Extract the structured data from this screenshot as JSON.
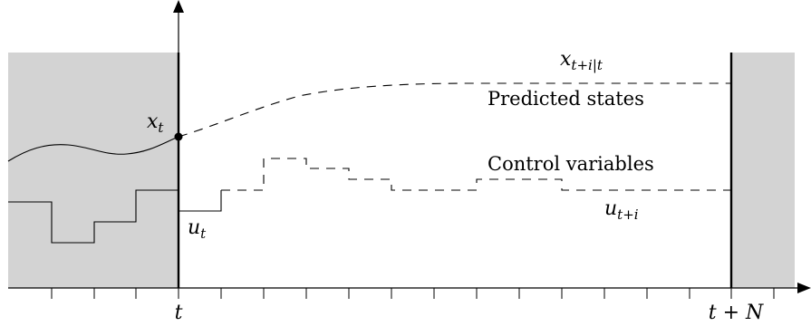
{
  "labels": {
    "x_t": "x",
    "x_t_sub": "t",
    "x_pred": "x",
    "x_pred_sub": "t+i|t",
    "predicted_states": "Predicted states",
    "control_variables": "Control variables",
    "u_t": "u",
    "u_t_sub": "t",
    "u_future": "u",
    "u_future_sub": "t+i",
    "tick_t": "t",
    "tick_t_N": "t + N"
  },
  "colors": {
    "shade": "#d3d3d3",
    "stroke": "#000000"
  }
}
